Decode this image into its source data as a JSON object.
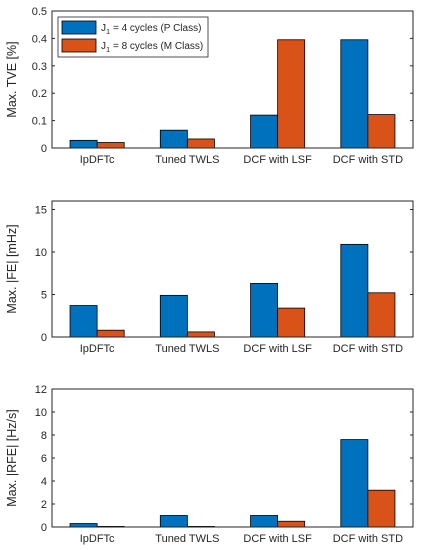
{
  "colors": {
    "series1": "#0072BD",
    "series2": "#D95319",
    "axis": "#262626",
    "bar_edge": "#000000"
  },
  "legend": {
    "placement": "top-left",
    "entries": [
      {
        "pre": "J",
        "sub": "1",
        "post": " = 4 cycles (P Class)"
      },
      {
        "pre": "J",
        "sub": "1",
        "post": " = 8 cycles (M Class)"
      }
    ]
  },
  "chart_data": [
    {
      "type": "bar",
      "categories": [
        "IpDFTc",
        "Tuned TWLS",
        "DCF with LSF",
        "DCF with STD"
      ],
      "series": [
        {
          "name": "J1 = 4 cycles (P Class)",
          "values": [
            0.028,
            0.065,
            0.12,
            0.395
          ]
        },
        {
          "name": "J1 = 8 cycles (M Class)",
          "values": [
            0.02,
            0.033,
            0.395,
            0.122
          ]
        }
      ],
      "ylabel": "Max. TVE [%]",
      "ylim": [
        0,
        0.5
      ],
      "yticks": [
        0,
        0.1,
        0.2,
        0.3,
        0.4,
        0.5
      ],
      "ytick_labels": [
        "0",
        "0.1",
        "0.2",
        "0.3",
        "0.4",
        "0.5"
      ],
      "grid": false,
      "legend": true
    },
    {
      "type": "bar",
      "categories": [
        "IpDFTc",
        "Tuned TWLS",
        "DCF with LSF",
        "DCF with STD"
      ],
      "series": [
        {
          "name": "J1 = 4 cycles (P Class)",
          "values": [
            3.7,
            4.9,
            6.3,
            10.9
          ]
        },
        {
          "name": "J1 = 8 cycles (M Class)",
          "values": [
            0.8,
            0.6,
            3.4,
            5.2
          ]
        }
      ],
      "ylabel": "Max. |FE| [mHz]",
      "ylim": [
        0,
        16
      ],
      "yticks": [
        0,
        5,
        10,
        15
      ],
      "ytick_labels": [
        "0",
        "5",
        "10",
        "15"
      ],
      "grid": false,
      "legend": false
    },
    {
      "type": "bar",
      "categories": [
        "IpDFTc",
        "Tuned TWLS",
        "DCF with LSF",
        "DCF with STD"
      ],
      "series": [
        {
          "name": "J1 = 4 cycles (P Class)",
          "values": [
            0.3,
            1.0,
            1.0,
            7.6
          ]
        },
        {
          "name": "J1 = 8 cycles (M Class)",
          "values": [
            0.05,
            0.05,
            0.5,
            3.2
          ]
        }
      ],
      "ylabel": "Max. |RFE| [Hz/s]",
      "ylim": [
        0,
        12
      ],
      "yticks": [
        0,
        2,
        4,
        6,
        8,
        10,
        12
      ],
      "ytick_labels": [
        "0",
        "2",
        "4",
        "6",
        "8",
        "10",
        "12"
      ],
      "grid": false,
      "legend": false
    }
  ]
}
